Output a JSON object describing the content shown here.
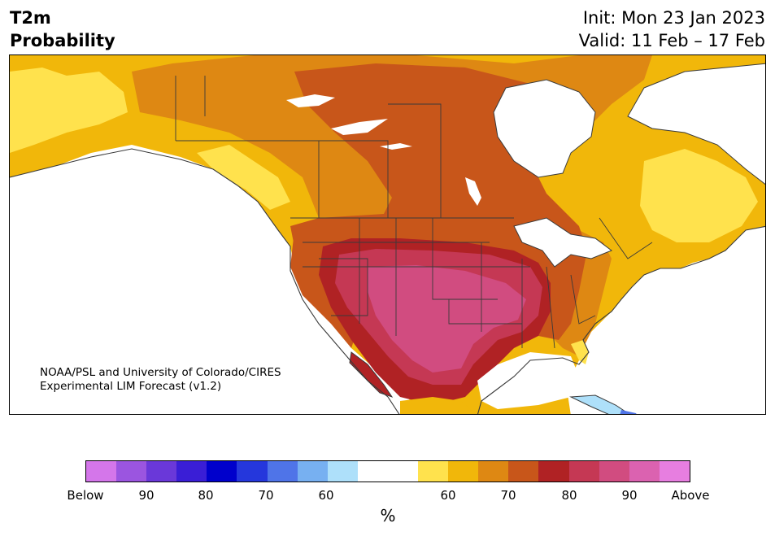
{
  "header": {
    "variable": "T2m",
    "product": "Probability",
    "init": "Init: Mon 23 Jan 2023",
    "valid": "Valid: 11 Feb – 17 Feb"
  },
  "credit": {
    "line1": "NOAA/PSL and University of Colorado/CIRES",
    "line2": "Experimental LIM Forecast (v1.2)"
  },
  "colorbar": {
    "unit": "%",
    "colors": [
      "#d476ea",
      "#9b55e0",
      "#6a38d9",
      "#3a1ed6",
      "#0000cc",
      "#2537dc",
      "#4f74e8",
      "#77b0f1",
      "#aee0fa",
      "#ffffff",
      "#ffffff",
      "#ffe24d",
      "#f1b70a",
      "#de8813",
      "#c8561a",
      "#b02224",
      "#c53854",
      "#d14c80",
      "#db62b0",
      "#e77ee0"
    ],
    "ticks": [
      "Below",
      "90",
      "80",
      "70",
      "60",
      "60",
      "70",
      "80",
      "90",
      "Above"
    ],
    "legend": "Below (left, cool colors) / Above (right, warm colors)"
  },
  "map": {
    "region": "North America",
    "colors": {
      "yellow": "#ffe24d",
      "gold": "#f1b70a",
      "orange": "#de8813",
      "dark_orange": "#c8561a",
      "red": "#b02224",
      "crimson": "#c53854",
      "pink": "#d14c80",
      "light_blue": "#aee0fa",
      "blue": "#4f74e8"
    }
  }
}
